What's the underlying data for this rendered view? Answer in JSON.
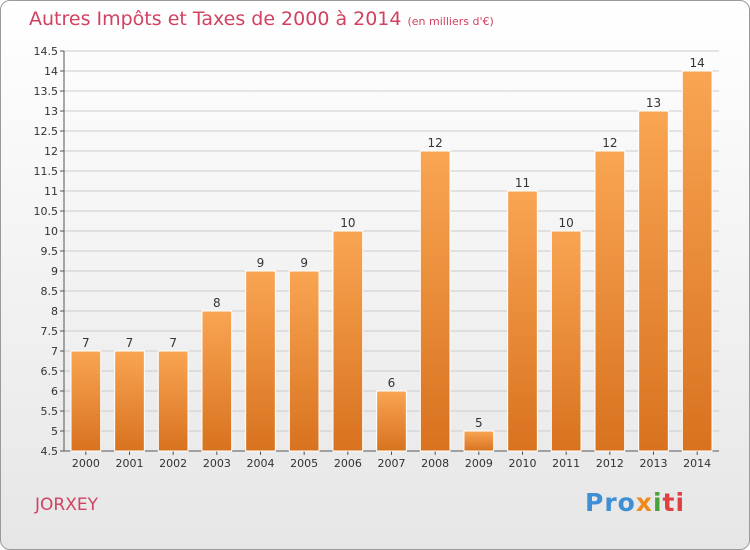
{
  "header": {
    "title": "Autres Impôts et Taxes de 2000 à 2014",
    "unit": "(en milliers d'€)"
  },
  "footer": {
    "commune": "JORXEY",
    "logo_parts": [
      "Pro",
      "x",
      "i",
      "ti"
    ]
  },
  "colors": {
    "title": "#d0425f",
    "bar_top": "#f9a552",
    "bar_bottom": "#d8721f",
    "grid": "#cccccc"
  },
  "chart_data": {
    "type": "bar",
    "title": "Autres Impôts et Taxes de 2000 à 2014",
    "subtitle": "(en milliers d'€)",
    "xlabel": "",
    "ylabel": "",
    "categories": [
      "2000",
      "2001",
      "2002",
      "2003",
      "2004",
      "2005",
      "2006",
      "2007",
      "2008",
      "2009",
      "2010",
      "2011",
      "2012",
      "2013",
      "2014"
    ],
    "values": [
      7,
      7,
      7,
      8,
      9,
      9,
      10,
      6,
      12,
      5,
      11,
      10,
      12,
      13,
      14
    ],
    "ylim": [
      4.5,
      14.5
    ],
    "yticks": [
      "4.5",
      "5",
      "5.5",
      "6",
      "6.5",
      "7",
      "7.5",
      "8",
      "8.5",
      "9",
      "9.5",
      "10",
      "10.5",
      "11",
      "11.5",
      "12",
      "12.5",
      "13",
      "13.5",
      "14",
      "14.5"
    ],
    "grid": true
  }
}
